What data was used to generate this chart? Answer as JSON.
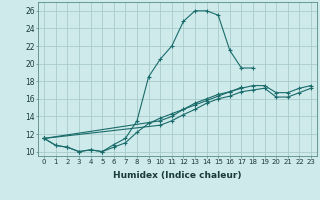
{
  "xlabel": "Humidex (Indice chaleur)",
  "bg_color": "#ceeaea",
  "grid_color": "#a8cccc",
  "line_color": "#1a6b6b",
  "xlim": [
    -0.5,
    23.5
  ],
  "ylim": [
    9.5,
    27.0
  ],
  "xticks": [
    0,
    1,
    2,
    3,
    4,
    5,
    6,
    7,
    8,
    9,
    10,
    11,
    12,
    13,
    14,
    15,
    16,
    17,
    18,
    19,
    20,
    21,
    22,
    23
  ],
  "yticks": [
    10,
    12,
    14,
    16,
    18,
    20,
    22,
    24,
    26
  ],
  "series": [
    {
      "x": [
        0,
        1,
        2,
        3,
        4,
        5,
        6,
        7,
        8,
        9,
        10,
        11,
        12,
        13,
        14,
        15,
        16,
        17,
        18
      ],
      "y": [
        11.5,
        10.7,
        10.5,
        10.0,
        10.2,
        10.0,
        10.8,
        11.5,
        13.5,
        18.5,
        20.5,
        22.0,
        24.8,
        26.0,
        26.0,
        25.5,
        21.5,
        19.5,
        19.5
      ]
    },
    {
      "x": [
        0,
        1,
        2,
        3,
        4,
        5,
        6,
        7,
        8,
        9,
        10,
        11,
        12,
        13,
        14,
        15,
        16,
        17
      ],
      "y": [
        11.5,
        10.7,
        10.5,
        10.0,
        10.2,
        10.0,
        10.5,
        11.0,
        12.2,
        13.2,
        13.8,
        14.3,
        14.8,
        15.3,
        15.8,
        16.3,
        16.8,
        17.3
      ]
    },
    {
      "x": [
        0,
        10,
        11,
        12,
        13,
        14,
        15,
        16,
        17,
        18,
        19,
        20,
        21,
        22,
        23
      ],
      "y": [
        11.5,
        13.5,
        14.0,
        14.8,
        15.5,
        16.0,
        16.5,
        16.8,
        17.2,
        17.5,
        17.5,
        16.7,
        16.7,
        17.2,
        17.5
      ]
    },
    {
      "x": [
        0,
        10,
        11,
        12,
        13,
        14,
        15,
        16,
        17,
        18,
        19,
        20,
        21,
        22,
        23
      ],
      "y": [
        11.5,
        13.0,
        13.5,
        14.2,
        14.8,
        15.5,
        16.0,
        16.3,
        16.8,
        17.0,
        17.2,
        16.2,
        16.2,
        16.7,
        17.2
      ]
    }
  ]
}
